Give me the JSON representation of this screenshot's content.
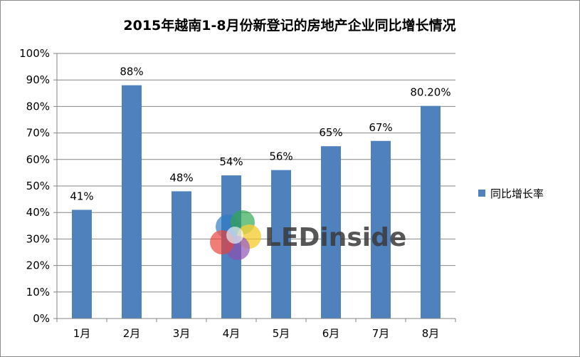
{
  "chart_data": {
    "type": "bar",
    "title": "2015年越南1-8月份新登记的房地产企业同比增长情况",
    "categories": [
      "1月",
      "2月",
      "3月",
      "4月",
      "5月",
      "6月",
      "7月",
      "8月"
    ],
    "series": [
      {
        "name": "同比增长率",
        "values": [
          41,
          88,
          48,
          54,
          56,
          65,
          67,
          80.2
        ],
        "labels": [
          "41%",
          "88%",
          "48%",
          "54%",
          "56%",
          "65%",
          "67%",
          "80.20%"
        ],
        "color": "#4f81bd"
      }
    ],
    "ylim": [
      0,
      100
    ],
    "yticks": [
      "0%",
      "10%",
      "20%",
      "30%",
      "40%",
      "50%",
      "60%",
      "70%",
      "80%",
      "90%",
      "100%"
    ],
    "grid": true,
    "legend": "right"
  },
  "watermark": {
    "text": "LEDinside",
    "icon": "ledinside-logo-icon"
  }
}
